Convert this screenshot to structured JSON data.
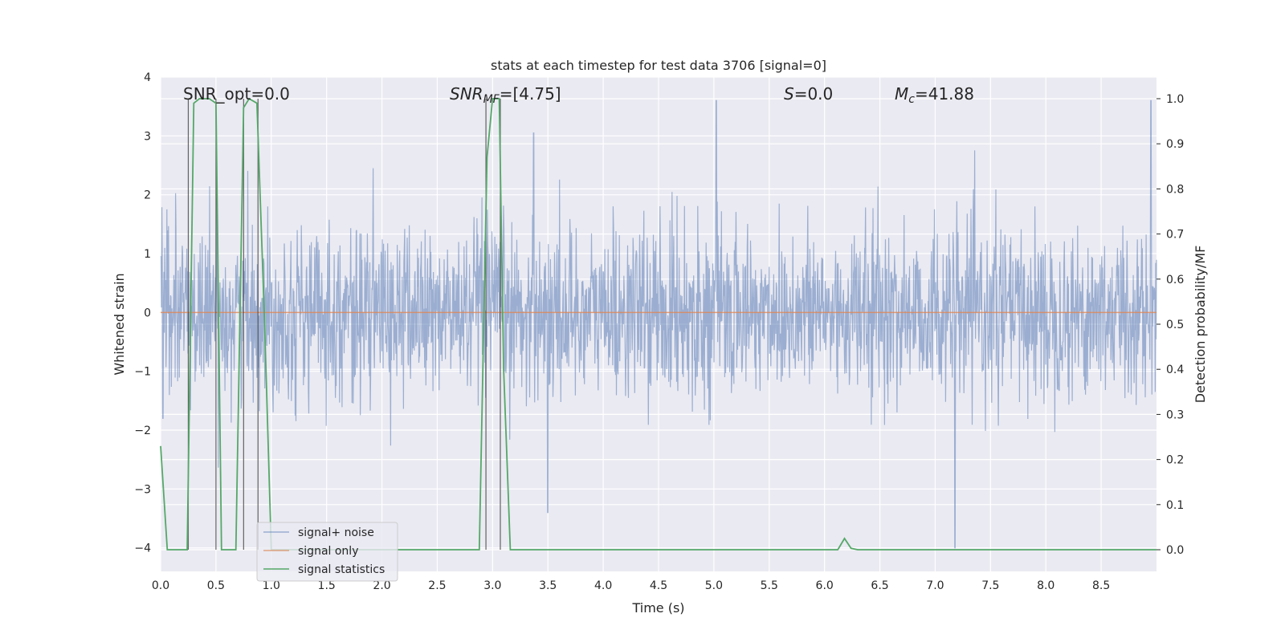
{
  "chart_data": {
    "type": "line",
    "title": "stats at each timestep for test data 3706 [signal=0]",
    "xlabel": "Time (s)",
    "ylabel": "Whitened strain",
    "ylabel_right": "Detection probability/MF",
    "xlim": [
      0,
      9
    ],
    "ylim": [
      -4.4,
      4
    ],
    "ylim_right": [
      -0.048,
      1.048
    ],
    "x_ticks": [
      "0.0",
      "0.5",
      "1.0",
      "1.5",
      "2.0",
      "2.5",
      "3.0",
      "3.5",
      "4.0",
      "4.5",
      "5.0",
      "5.5",
      "6.0",
      "6.5",
      "7.0",
      "7.5",
      "8.0",
      "8.5"
    ],
    "y_ticks": [
      "4",
      "3",
      "2",
      "1",
      "0",
      "−1",
      "−2",
      "−3",
      "−4"
    ],
    "y_ticks_right": [
      "1.0",
      "0.9",
      "0.8",
      "0.7",
      "0.6",
      "0.5",
      "0.4",
      "0.3",
      "0.2",
      "0.1",
      "0.0"
    ],
    "annotations": {
      "snr_opt": "SNR_opt=0.0",
      "snr_mf_sym": "SNR",
      "snr_mf_sub": "MF",
      "snr_mf_val": "=[4.75]",
      "s_sym": "S",
      "s_val": "=0.0",
      "mc_sym": "M",
      "mc_sub": "c",
      "mc_val": "=41.88"
    },
    "legend": {
      "position": "lower-left",
      "entries": [
        "signal+ noise",
        "signal only",
        "signal statistics"
      ]
    },
    "series": [
      {
        "name": "signal+ noise",
        "axis": "left",
        "color": "#4c72b0",
        "description": "whitened strain noise, sampled densely, amplitude about ±1.5 with spikes to ±3.6",
        "n_points": 2400,
        "std": 0.72,
        "spikes": [
          [
            5.02,
            3.6
          ],
          [
            7.18,
            -4.0
          ],
          [
            3.37,
            3.05
          ],
          [
            8.95,
            3.6
          ],
          [
            0.02,
            -1.8
          ],
          [
            3.5,
            -3.4
          ]
        ]
      },
      {
        "name": "signal only",
        "axis": "left",
        "color": "#dd8452",
        "x": [
          0,
          9
        ],
        "y": [
          0,
          0
        ]
      },
      {
        "name": "signal statistics",
        "axis": "right",
        "color": "#55a868",
        "x": [
          0.0,
          0.06,
          0.24,
          0.3,
          0.35,
          0.4,
          0.44,
          0.5,
          0.55,
          0.6,
          0.68,
          0.75,
          0.8,
          0.87,
          0.94,
          1.0,
          2.88,
          2.95,
          3.0,
          3.06,
          3.1,
          3.16,
          6.12,
          6.18,
          6.24,
          6.3,
          9.0
        ],
        "y": [
          0.23,
          0.0,
          0.0,
          0.99,
          1.0,
          1.0,
          1.0,
          0.99,
          0.0,
          0.0,
          0.0,
          0.98,
          1.0,
          0.99,
          0.5,
          0.0,
          0.0,
          0.87,
          1.0,
          1.0,
          0.4,
          0.0,
          0.0,
          0.025,
          0.003,
          0.0,
          0.0
        ]
      }
    ],
    "vertical_markers": [
      0.25,
      0.5,
      0.75,
      0.88,
      2.94,
      3.07
    ]
  }
}
